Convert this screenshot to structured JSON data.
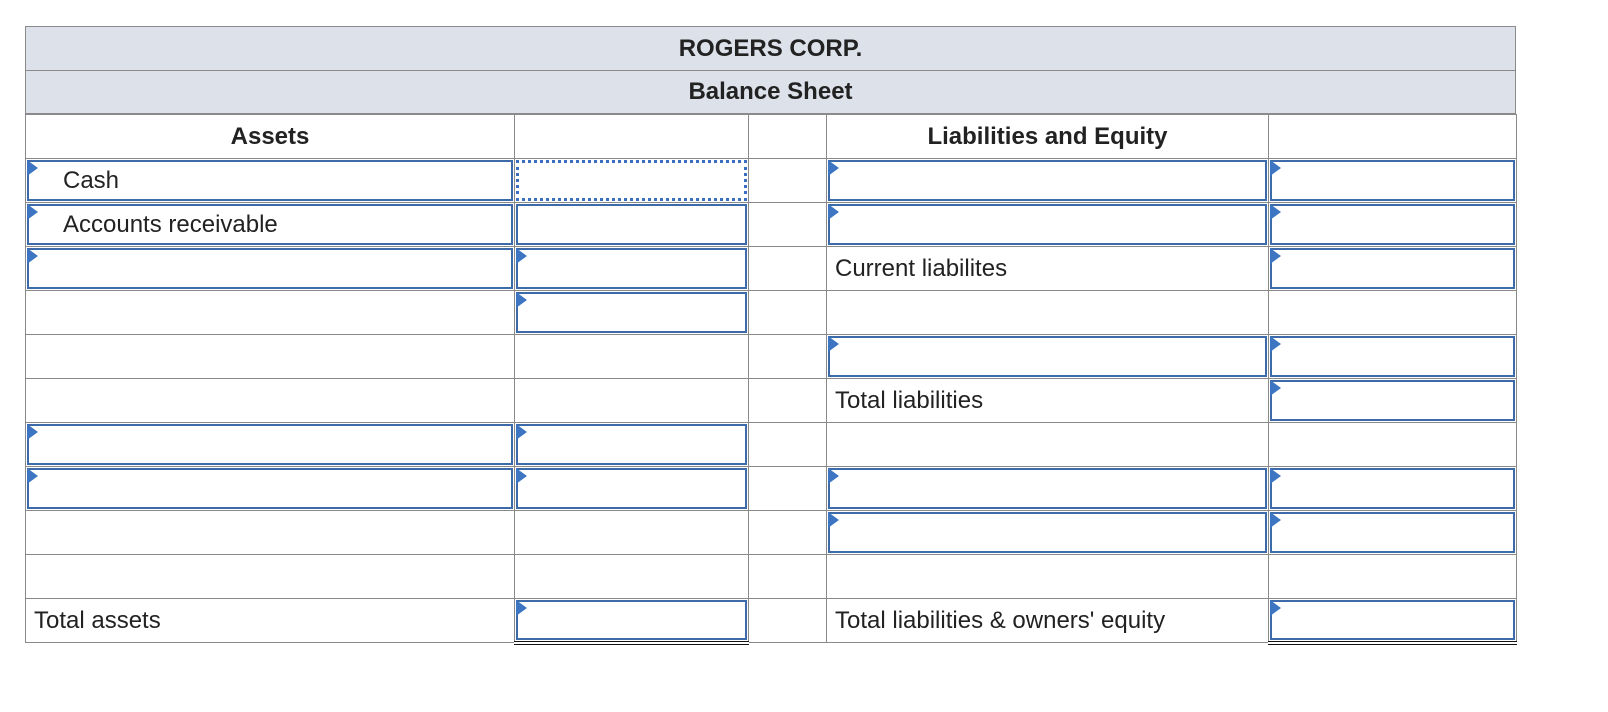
{
  "header": {
    "company": "ROGERS CORP.",
    "statement": "Balance Sheet"
  },
  "columns": {
    "assets": "Assets",
    "liabilities_equity": "Liabilities and Equity"
  },
  "rows": {
    "r1_asset": "Cash",
    "r2_asset": "Accounts receivable",
    "r3_liab": "Current liabilites",
    "r6_liab": "Total liabilities",
    "total_assets": "Total assets",
    "total_liab_equity": "Total liabilities & owners' equity"
  },
  "colors": {
    "header_bg": "#dde1ea",
    "input_border": "#3d6aa8",
    "marker": "#3d75c2"
  }
}
